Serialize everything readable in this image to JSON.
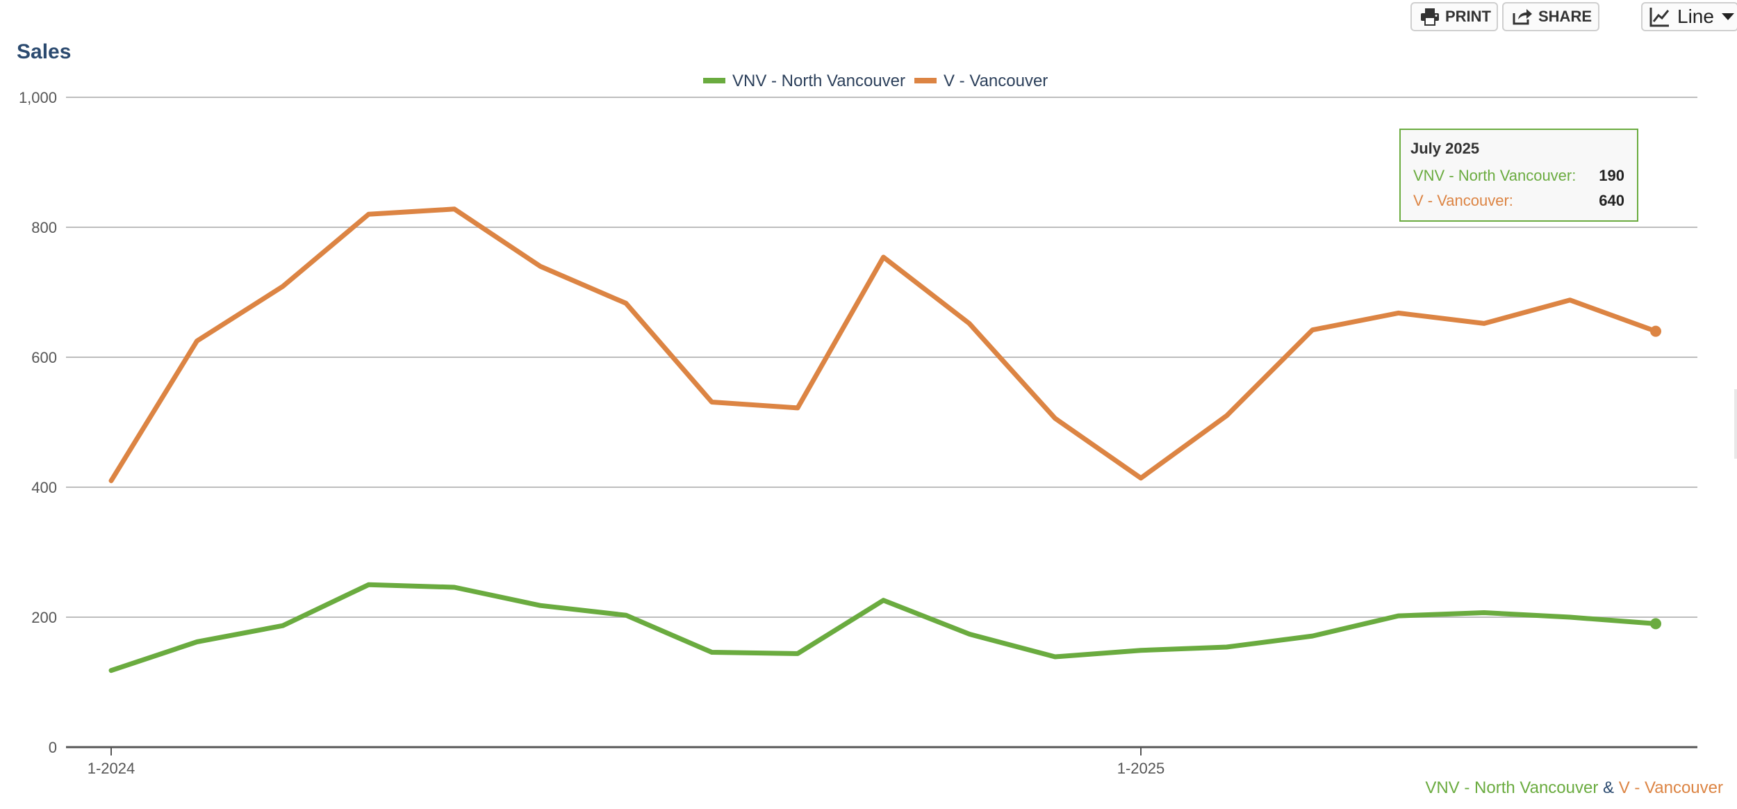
{
  "toolbar": {
    "print_label": "PRINT",
    "share_label": "SHARE",
    "chart_type_label": "Line"
  },
  "page_title": "Sales",
  "tooltip": {
    "title": "July 2025",
    "rows": [
      {
        "label": "VNV - North Vancouver:",
        "value": "190"
      },
      {
        "label": "V - Vancouver:",
        "value": "640"
      }
    ]
  },
  "footer": {
    "series_a": "VNV - North Vancouver",
    "joiner": "&",
    "series_b": "V - Vancouver"
  },
  "colors": {
    "north_vancouver": "#6aab3f",
    "vancouver": "#dc8443",
    "title": "#2b4a6f",
    "grid": "#bdbdbd",
    "axis": "#555555"
  },
  "chart_data": {
    "type": "line",
    "title": "Sales",
    "xlabel": "",
    "ylabel": "",
    "ylim": [
      0,
      1000
    ],
    "yticks": [
      0,
      200,
      400,
      600,
      800,
      1000
    ],
    "ytick_labels": [
      "0",
      "200",
      "400",
      "600",
      "800",
      "1,000"
    ],
    "x": [
      "2024-01",
      "2024-02",
      "2024-03",
      "2024-04",
      "2024-05",
      "2024-06",
      "2024-07",
      "2024-08",
      "2024-09",
      "2024-10",
      "2024-11",
      "2024-12",
      "2025-01",
      "2025-02",
      "2025-03",
      "2025-04",
      "2025-05",
      "2025-06",
      "2025-07"
    ],
    "xtick_labels": [
      {
        "x": "2024-01",
        "label": "1-2024"
      },
      {
        "x": "2025-01",
        "label": "1-2025"
      }
    ],
    "legend_position": "top-center",
    "grid": true,
    "series": [
      {
        "name": "VNV - North Vancouver",
        "color": "#6aab3f",
        "values": [
          118,
          162,
          187,
          250,
          246,
          218,
          203,
          146,
          144,
          226,
          174,
          139,
          149,
          154,
          171,
          202,
          207,
          200,
          190
        ]
      },
      {
        "name": "V - Vancouver",
        "color": "#dc8443",
        "values": [
          410,
          625,
          709,
          820,
          828,
          740,
          683,
          531,
          522,
          754,
          652,
          506,
          414,
          510,
          642,
          668,
          652,
          688,
          640
        ]
      }
    ]
  }
}
